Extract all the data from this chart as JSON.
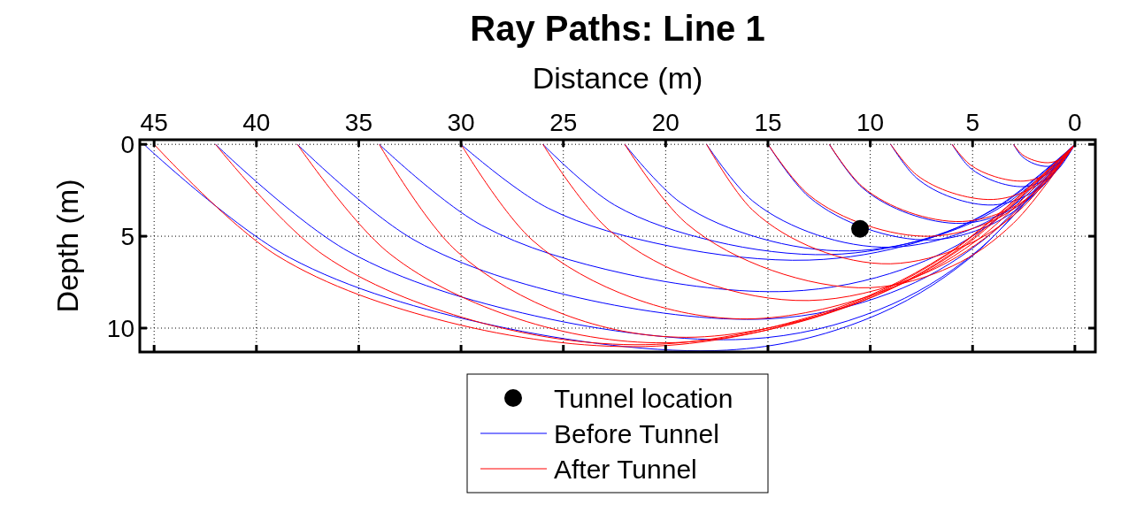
{
  "chart_data": {
    "type": "line",
    "title": "Ray Paths: Line 1",
    "xlabel": "Distance (m)",
    "ylabel": "Depth (m)",
    "xlim": [
      45.7,
      -1
    ],
    "xticks": [
      45,
      40,
      35,
      30,
      25,
      20,
      15,
      10,
      5,
      0
    ],
    "ylim": [
      11.3,
      -0.25
    ],
    "yticks": [
      0,
      5,
      10
    ],
    "grid": true,
    "legend": "bottom",
    "line_style": "solid",
    "series": [
      {
        "name": "Tunnel location",
        "type": "scatter",
        "marker": "circle",
        "color": "#000000",
        "x": [
          10.5
        ],
        "values": [
          4.6
        ]
      },
      {
        "name": "Before Tunnel",
        "color": "#0000ff",
        "x": [
          3,
          2.58,
          1.98,
          1.3,
          0.78,
          0.39,
          0
        ],
        "values": [
          0,
          0.66,
          1.06,
          1.2,
          1.02,
          0.66,
          0
        ]
      },
      {
        "color": "#0000ff",
        "x": [
          6,
          5.13,
          3.9,
          2.5,
          1.5,
          0.75,
          0
        ],
        "values": [
          0,
          1.27,
          2.02,
          2.3,
          1.96,
          1.27,
          0
        ]
      },
      {
        "color": "#0000ff",
        "x": [
          9,
          7.75,
          6,
          4,
          2.4,
          1.2,
          0
        ],
        "values": [
          0,
          1.82,
          2.9,
          3.3,
          2.81,
          1.82,
          0
        ]
      },
      {
        "color": "#0000ff",
        "x": [
          12,
          10.38,
          8.1,
          5.5,
          3.3,
          1.65,
          0
        ],
        "values": [
          0,
          2.37,
          3.78,
          4.3,
          3.66,
          2.37,
          0
        ]
      },
      {
        "color": "#0000ff",
        "x": [
          15,
          13,
          10.2,
          7,
          4.2,
          2.1,
          0
        ],
        "values": [
          0,
          2.86,
          4.58,
          5.2,
          4.42,
          2.86,
          0
        ]
      },
      {
        "color": "#0000ff",
        "x": [
          18,
          15.75,
          12.6,
          9,
          5.4,
          2.7,
          0
        ],
        "values": [
          0,
          3.08,
          4.93,
          5.6,
          4.76,
          3.08,
          0
        ]
      },
      {
        "color": "#0000ff",
        "x": [
          22,
          19.25,
          15.4,
          11,
          6.6,
          3.3,
          0
        ],
        "values": [
          0,
          3.19,
          5.1,
          5.8,
          4.93,
          3.19,
          0
        ]
      },
      {
        "color": "#0000ff",
        "x": [
          26,
          22.5,
          17.6,
          12,
          7.2,
          3.6,
          0
        ],
        "values": [
          0,
          3.3,
          5.28,
          6,
          5.1,
          3.3,
          0
        ]
      },
      {
        "color": "#0000ff",
        "x": [
          30,
          25.75,
          19.8,
          13,
          7.8,
          3.9,
          0
        ],
        "values": [
          0,
          3.47,
          5.54,
          6.3,
          5.36,
          3.47,
          0
        ]
      },
      {
        "color": "#0000ff",
        "x": [
          34,
          29,
          22,
          14,
          8.4,
          4.2,
          0
        ],
        "values": [
          0,
          4.4,
          7.04,
          8,
          6.8,
          4.4,
          0
        ]
      },
      {
        "color": "#0000ff",
        "x": [
          38,
          32.25,
          24.2,
          15,
          9,
          4.5,
          0
        ],
        "values": [
          0,
          5.23,
          8.36,
          9.5,
          8.08,
          5.23,
          0
        ]
      },
      {
        "color": "#0000ff",
        "x": [
          42,
          35.5,
          26.4,
          16,
          9.6,
          4.8,
          0
        ],
        "values": [
          0,
          5.83,
          9.33,
          10.6,
          9.01,
          5.83,
          0
        ]
      },
      {
        "color": "#0000ff",
        "x": [
          45.5,
          38.38,
          28.4,
          17,
          10.2,
          5.1,
          0
        ],
        "values": [
          0,
          6.16,
          9.86,
          11.2,
          9.52,
          6.16,
          0
        ]
      },
      {
        "name": "After Tunnel",
        "color": "#ff0000",
        "x": [
          3,
          2.58,
          1.98,
          1.3,
          0.78,
          0.39,
          0
        ],
        "values": [
          0,
          0.55,
          0.88,
          1,
          0.85,
          0.55,
          0
        ]
      },
      {
        "color": "#ff0000",
        "x": [
          6,
          5.13,
          3.9,
          2.5,
          1.5,
          0.75,
          0
        ],
        "values": [
          0,
          1.1,
          1.76,
          2,
          1.7,
          1.1,
          0
        ]
      },
      {
        "color": "#ff0000",
        "x": [
          9,
          7.75,
          6,
          4,
          2.4,
          1.2,
          0
        ],
        "values": [
          0,
          1.65,
          2.64,
          3,
          2.55,
          1.65,
          0
        ]
      },
      {
        "color": "#ff0000",
        "x": [
          12,
          10.38,
          8.1,
          5.5,
          3.3,
          1.65,
          0
        ],
        "values": [
          0,
          2.31,
          3.7,
          4.2,
          3.57,
          2.31,
          0
        ]
      },
      {
        "color": "#ff0000",
        "x": [
          15,
          13,
          10.2,
          7,
          4.2,
          2.1,
          0
        ],
        "values": [
          0,
          2.75,
          4.4,
          5,
          4.25,
          2.75,
          0
        ]
      },
      {
        "color": "#ff0000",
        "x": [
          18,
          15.75,
          12.6,
          9,
          5.4,
          2.7,
          0
        ],
        "values": [
          0,
          3.58,
          5.72,
          6.5,
          5.53,
          3.58,
          0
        ]
      },
      {
        "color": "#ff0000",
        "x": [
          22,
          19,
          14.8,
          10,
          6,
          3,
          0
        ],
        "values": [
          0,
          4.29,
          6.86,
          7.8,
          6.63,
          4.29,
          0
        ]
      },
      {
        "color": "#ff0000",
        "x": [
          26,
          22.75,
          18.2,
          13,
          7.8,
          3.9,
          0
        ],
        "values": [
          0,
          4.68,
          7.48,
          8.5,
          7.23,
          4.68,
          0
        ]
      },
      {
        "color": "#ff0000",
        "x": [
          30,
          26.5,
          21.6,
          16,
          9.6,
          4.8,
          0
        ],
        "values": [
          0,
          5.23,
          8.36,
          9.5,
          8.08,
          5.23,
          0
        ]
      },
      {
        "color": "#ff0000",
        "x": [
          34,
          30.25,
          25,
          19,
          11.4,
          5.7,
          0
        ],
        "values": [
          0,
          5.78,
          9.24,
          10.5,
          8.93,
          5.78,
          0
        ]
      },
      {
        "color": "#ff0000",
        "x": [
          38,
          33.5,
          27.2,
          20,
          12,
          6,
          0
        ],
        "values": [
          0,
          5.94,
          9.5,
          10.8,
          9.18,
          5.94,
          0
        ]
      },
      {
        "color": "#ff0000",
        "x": [
          42,
          36.75,
          29.4,
          21,
          12.6,
          6.3,
          0
        ],
        "values": [
          0,
          6,
          9.59,
          10.9,
          9.27,
          6,
          0
        ]
      },
      {
        "color": "#ff0000",
        "x": [
          45,
          39,
          30.6,
          21,
          12.6,
          6.3,
          0
        ],
        "values": [
          0,
          6.05,
          9.68,
          11,
          9.35,
          6.05,
          0
        ]
      }
    ]
  }
}
